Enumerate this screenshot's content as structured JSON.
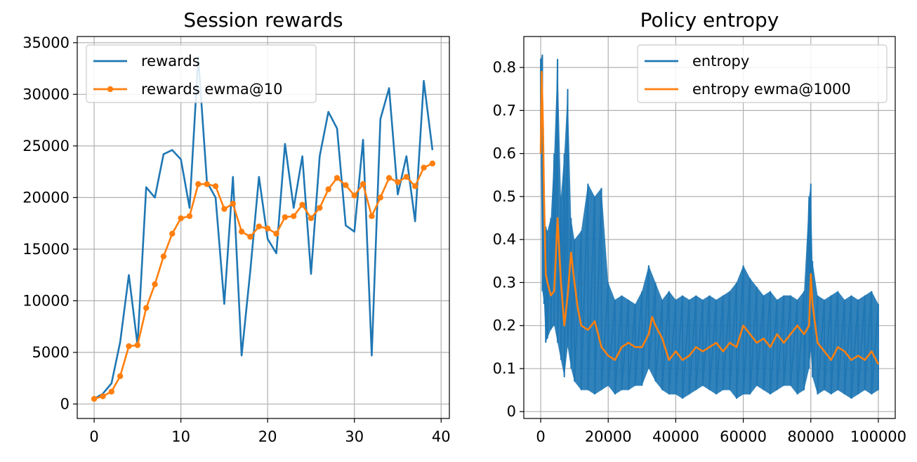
{
  "colors": {
    "series1": "#1f77b4",
    "series2": "#ff7f0e"
  },
  "chart_data": [
    {
      "type": "line",
      "title": "Session rewards",
      "xlabel": "",
      "ylabel": "",
      "xlim": [
        -1.95,
        40.95
      ],
      "ylim": [
        -1400,
        35600
      ],
      "xticks": [
        0,
        10,
        20,
        30,
        40
      ],
      "yticks": [
        0,
        5000,
        10000,
        15000,
        20000,
        25000,
        30000,
        35000
      ],
      "grid": true,
      "legend_position": "upper-left",
      "series": [
        {
          "name": "rewards",
          "color": "#1f77b4",
          "marker": false,
          "x": [
            0,
            1,
            2,
            3,
            4,
            5,
            6,
            7,
            8,
            9,
            10,
            11,
            12,
            13,
            14,
            15,
            16,
            17,
            18,
            19,
            20,
            21,
            22,
            23,
            24,
            25,
            26,
            27,
            28,
            29,
            30,
            31,
            32,
            33,
            34,
            35,
            36,
            37,
            38,
            39
          ],
          "values": [
            500,
            1000,
            2000,
            6000,
            12500,
            5700,
            21000,
            20000,
            24200,
            24600,
            23700,
            19000,
            33600,
            21500,
            20000,
            9700,
            22000,
            4700,
            12900,
            22000,
            16000,
            14600,
            25200,
            19000,
            24000,
            12600,
            24000,
            28300,
            26700,
            17300,
            16700,
            25600,
            4700,
            27600,
            30600,
            20300,
            24000,
            17700,
            31300,
            24600
          ]
        },
        {
          "name": "rewards ewma@10",
          "color": "#ff7f0e",
          "marker": true,
          "x": [
            0,
            1,
            2,
            3,
            4,
            5,
            6,
            7,
            8,
            9,
            10,
            11,
            12,
            13,
            14,
            15,
            16,
            17,
            18,
            19,
            20,
            21,
            22,
            23,
            24,
            25,
            26,
            27,
            28,
            29,
            30,
            31,
            32,
            33,
            34,
            35,
            36,
            37,
            38,
            39
          ],
          "values": [
            500,
            750,
            1200,
            2700,
            5600,
            5700,
            9300,
            11600,
            14300,
            16500,
            18000,
            18200,
            21300,
            21300,
            21100,
            18900,
            19400,
            16700,
            16200,
            17200,
            17000,
            16500,
            18100,
            18200,
            19300,
            18000,
            19000,
            20800,
            21900,
            21200,
            20200,
            21300,
            18200,
            20000,
            21900,
            21500,
            22000,
            21100,
            22900,
            23300
          ]
        }
      ]
    },
    {
      "type": "line",
      "title": "Policy entropy",
      "xlabel": "",
      "ylabel": "",
      "xlim": [
        -5000,
        105000
      ],
      "ylim": [
        -0.016,
        0.872
      ],
      "xticks": [
        0,
        20000,
        40000,
        60000,
        80000,
        100000
      ],
      "yticks": [
        0.0,
        0.1,
        0.2,
        0.3,
        0.4,
        0.5,
        0.6,
        0.7,
        0.8
      ],
      "grid": true,
      "legend_position": "upper-right",
      "series": [
        {
          "name": "entropy",
          "color": "#1f77b4",
          "marker": false,
          "x": [
            0,
            500,
            1000,
            1500,
            2000,
            3000,
            4000,
            5000,
            6000,
            7000,
            8000,
            9000,
            10000,
            12000,
            14000,
            16000,
            18000,
            20000,
            22000,
            24000,
            26000,
            28000,
            30000,
            32000,
            34000,
            36000,
            38000,
            40000,
            42000,
            44000,
            46000,
            48000,
            50000,
            52000,
            54000,
            56000,
            58000,
            60000,
            62000,
            64000,
            66000,
            68000,
            70000,
            72000,
            74000,
            76000,
            78000,
            79500,
            80000,
            80500,
            82000,
            84000,
            86000,
            88000,
            90000,
            92000,
            94000,
            96000,
            98000,
            100000
          ],
          "upper": [
            0.82,
            0.83,
            0.45,
            0.43,
            0.42,
            0.45,
            0.6,
            0.82,
            0.5,
            0.6,
            0.75,
            0.45,
            0.4,
            0.42,
            0.53,
            0.5,
            0.52,
            0.3,
            0.26,
            0.27,
            0.26,
            0.25,
            0.28,
            0.34,
            0.3,
            0.26,
            0.28,
            0.26,
            0.27,
            0.26,
            0.27,
            0.26,
            0.27,
            0.26,
            0.27,
            0.28,
            0.3,
            0.34,
            0.31,
            0.29,
            0.27,
            0.28,
            0.26,
            0.27,
            0.27,
            0.26,
            0.28,
            0.5,
            0.53,
            0.35,
            0.27,
            0.26,
            0.27,
            0.28,
            0.26,
            0.27,
            0.26,
            0.27,
            0.28,
            0.25
          ],
          "lower": [
            0.62,
            0.28,
            0.25,
            0.16,
            0.17,
            0.19,
            0.2,
            0.16,
            0.12,
            0.08,
            0.15,
            0.1,
            0.07,
            0.05,
            0.05,
            0.04,
            0.05,
            0.06,
            0.04,
            0.05,
            0.05,
            0.06,
            0.06,
            0.1,
            0.07,
            0.05,
            0.04,
            0.04,
            0.03,
            0.04,
            0.05,
            0.06,
            0.05,
            0.04,
            0.05,
            0.05,
            0.03,
            0.04,
            0.04,
            0.06,
            0.05,
            0.04,
            0.05,
            0.06,
            0.06,
            0.04,
            0.05,
            0.1,
            0.14,
            0.08,
            0.04,
            0.05,
            0.04,
            0.05,
            0.04,
            0.03,
            0.04,
            0.05,
            0.04,
            0.05
          ]
        },
        {
          "name": "entropy ewma@1000",
          "color": "#ff7f0e",
          "marker": false,
          "x": [
            0,
            300,
            700,
            1000,
            1500,
            2000,
            3000,
            4000,
            5000,
            6000,
            7000,
            8000,
            9000,
            10000,
            11000,
            12000,
            14000,
            16000,
            18000,
            20000,
            22000,
            24000,
            26000,
            28000,
            30000,
            32000,
            33000,
            34000,
            36000,
            38000,
            40000,
            42000,
            44000,
            46000,
            48000,
            50000,
            52000,
            54000,
            56000,
            58000,
            60000,
            62000,
            64000,
            66000,
            68000,
            70000,
            72000,
            74000,
            76000,
            78000,
            79500,
            80000,
            80500,
            82000,
            84000,
            86000,
            88000,
            90000,
            92000,
            94000,
            96000,
            98000,
            100000
          ],
          "values": [
            0.6,
            0.79,
            0.66,
            0.5,
            0.32,
            0.3,
            0.27,
            0.28,
            0.45,
            0.3,
            0.2,
            0.27,
            0.37,
            0.3,
            0.24,
            0.2,
            0.19,
            0.21,
            0.15,
            0.13,
            0.12,
            0.15,
            0.16,
            0.15,
            0.15,
            0.18,
            0.22,
            0.2,
            0.17,
            0.12,
            0.14,
            0.12,
            0.13,
            0.15,
            0.14,
            0.15,
            0.16,
            0.14,
            0.16,
            0.15,
            0.2,
            0.18,
            0.16,
            0.17,
            0.15,
            0.18,
            0.16,
            0.18,
            0.2,
            0.18,
            0.2,
            0.32,
            0.25,
            0.16,
            0.14,
            0.12,
            0.15,
            0.14,
            0.12,
            0.13,
            0.12,
            0.14,
            0.11
          ]
        }
      ]
    }
  ]
}
